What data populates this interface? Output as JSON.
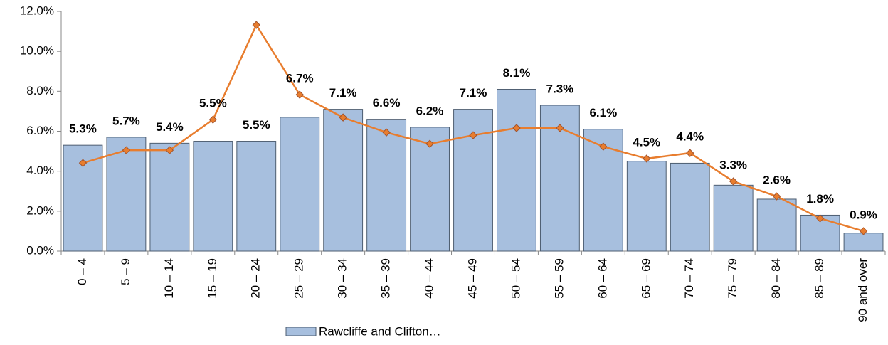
{
  "chart_data": {
    "type": "bar_line",
    "categories": [
      "0 – 4",
      "5 – 9",
      "10 – 14",
      "15 – 19",
      "20 – 24",
      "25 – 29",
      "30 – 34",
      "35 – 39",
      "40 – 44",
      "45 – 49",
      "50 – 54",
      "55 – 59",
      "60 – 64",
      "65 – 69",
      "70 – 74",
      "75 – 79",
      "80 – 84",
      "85 – 89",
      "90 and over"
    ],
    "series": [
      {
        "name": "Rawcliffe and Clifton…",
        "type": "bar",
        "color": "#a7bfde",
        "values": [
          5.3,
          5.7,
          5.4,
          5.5,
          5.5,
          6.7,
          7.1,
          6.6,
          6.2,
          7.1,
          8.1,
          7.3,
          6.1,
          4.5,
          4.4,
          3.3,
          2.6,
          1.8,
          0.9
        ],
        "value_labels": [
          "5.3%",
          "5.7%",
          "5.4%",
          "5.5%",
          "5.5%",
          "6.7%",
          "7.1%",
          "6.6%",
          "6.2%",
          "7.1%",
          "8.1%",
          "7.3%",
          "6.1%",
          "4.5%",
          "4.4%",
          "3.3%",
          "2.6%",
          "1.8%",
          "0.9%"
        ]
      },
      {
        "type": "line",
        "color": "#e87d2e",
        "values": [
          4.41,
          5.05,
          5.05,
          6.58,
          11.32,
          7.83,
          6.69,
          5.94,
          5.37,
          5.8,
          6.16,
          6.16,
          5.23,
          4.63,
          4.91,
          3.49,
          2.74,
          1.64,
          1.0
        ]
      }
    ],
    "ylim": [
      0,
      12
    ],
    "yticks": [
      {
        "value": 0,
        "label": "0.0%"
      },
      {
        "value": 2,
        "label": "2.0%"
      },
      {
        "value": 4,
        "label": "4.0%"
      },
      {
        "value": 6,
        "label": "6.0%"
      },
      {
        "value": 8,
        "label": "8.0%"
      },
      {
        "value": 10,
        "label": "10.0%"
      },
      {
        "value": 12,
        "label": "12.0%"
      }
    ],
    "legend": "bottom"
  }
}
